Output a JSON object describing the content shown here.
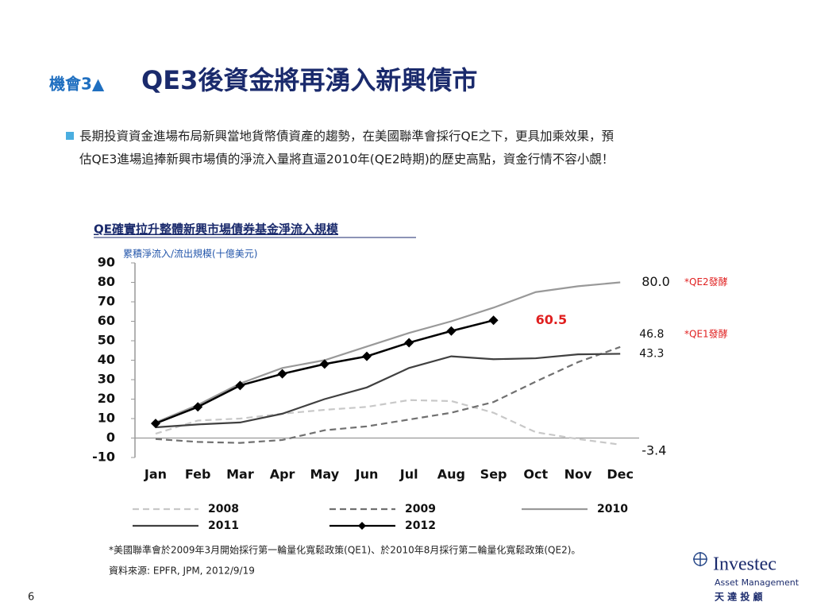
{
  "header": {
    "tag": "機會3▲",
    "title": "QE3後資金將再湧入新興債市"
  },
  "bullet": {
    "lines": [
      "長期投資資金進場布局新興當地貨幣債資產的趨勢，在美國聯準會採行QE之下，更具加乘效果，預",
      "估QE3進場追捧新興市場債的淨流入量將直逼2010年(QE2時期)的歷史高點，資金行情不容小覷！"
    ]
  },
  "chart_data": {
    "type": "line",
    "title": "QE確實拉升整體新興市場債券基金淨流入規模",
    "y_label": "累積淨流入/流出規模(十億美元)",
    "categories": [
      "Jan",
      "Feb",
      "Mar",
      "Apr",
      "May",
      "Jun",
      "Jul",
      "Aug",
      "Sep",
      "Oct",
      "Nov",
      "Dec"
    ],
    "ylim": [
      -10,
      90
    ],
    "yticks": [
      -10,
      0,
      10,
      20,
      30,
      40,
      50,
      60,
      70,
      80,
      90
    ],
    "grid": false,
    "legend": "bottom",
    "series": [
      {
        "name": "2008",
        "color": "#c8c8c8",
        "dash": true,
        "values": [
          2.2,
          9,
          10,
          12.5,
          14.5,
          16,
          19.5,
          19,
          13,
          3,
          -0.5,
          -3.4
        ],
        "value_labels": [
          null,
          null,
          null,
          null,
          null,
          null,
          null,
          null,
          null,
          null,
          null,
          "-3.4"
        ]
      },
      {
        "name": "2009",
        "color": "#707070",
        "dash": true,
        "values": [
          -0.5,
          -2,
          -2.5,
          -1,
          4,
          6,
          9.5,
          13,
          18.5,
          29,
          39,
          46.8
        ],
        "value_labels": [
          null,
          null,
          null,
          null,
          null,
          null,
          null,
          null,
          null,
          null,
          null,
          "46.8"
        ]
      },
      {
        "name": "2010",
        "color": "#999999",
        "dash": false,
        "values": [
          8,
          17,
          28,
          36,
          40,
          47,
          54,
          60,
          67,
          75,
          78,
          80
        ],
        "value_labels": [
          null,
          null,
          null,
          null,
          null,
          null,
          null,
          null,
          null,
          null,
          null,
          "80.0"
        ]
      },
      {
        "name": "2011",
        "color": "#404040",
        "dash": false,
        "values": [
          5.5,
          7,
          8,
          12.5,
          20,
          26,
          36,
          42,
          40.5,
          41,
          43,
          43.3
        ],
        "value_labels": [
          null,
          null,
          null,
          null,
          null,
          null,
          null,
          null,
          null,
          null,
          null,
          "43.3"
        ]
      },
      {
        "name": "2012",
        "color": "#000000",
        "dash": false,
        "marker": "diamond",
        "values": [
          7.5,
          16,
          27,
          33,
          38,
          42,
          49,
          55,
          60.5,
          null,
          null,
          null
        ],
        "value_labels": [
          null,
          null,
          null,
          null,
          null,
          null,
          null,
          null,
          "60.5",
          null,
          null,
          null
        ]
      }
    ],
    "annotations": [
      "*QE2發酵",
      "*QE1發酵"
    ]
  },
  "footnotes": [
    "*美國聯準會於2009年3月開始採行第一輪量化寬鬆政策(QE1)、於2010年8月採行第二輪量化寬鬆政策(QE2)。",
    "資料來源: EPFR, JPM, 2012/9/19"
  ],
  "logo": {
    "name": "Investec",
    "sub": "Asset Management",
    "local": "天 達 投 顧"
  },
  "page_number": "6"
}
